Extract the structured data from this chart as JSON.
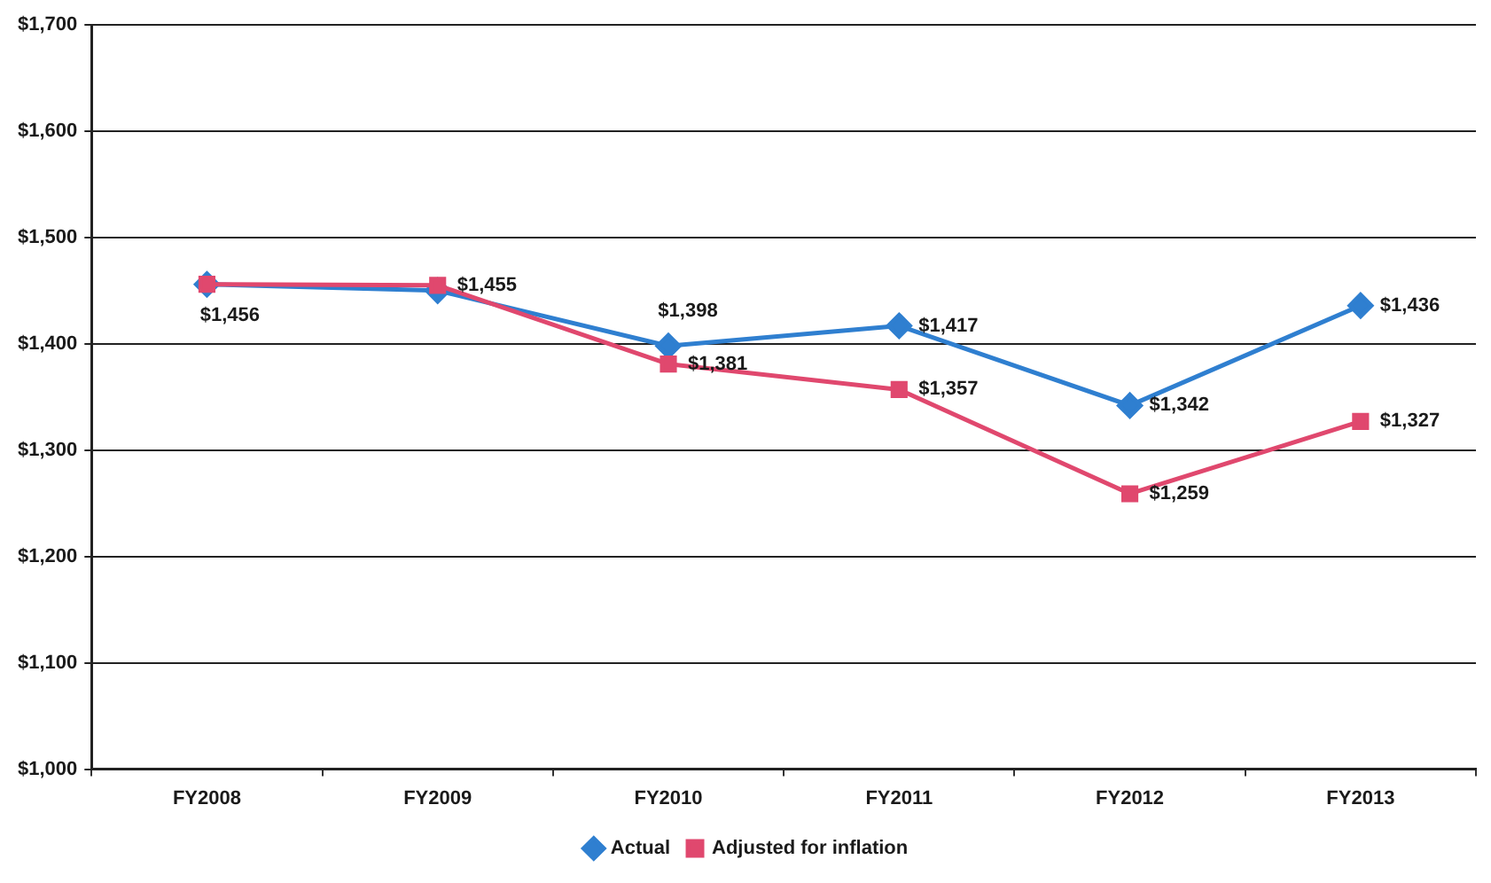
{
  "chart_data": {
    "type": "line",
    "categories": [
      "FY2008",
      "FY2009",
      "FY2010",
      "FY2011",
      "FY2012",
      "FY2013"
    ],
    "series": [
      {
        "name": "Actual",
        "color": "#2f7fd0",
        "marker": "diamond",
        "values": [
          1456,
          1450,
          1398,
          1417,
          1342,
          1436
        ],
        "value_labels": [
          "$1,456",
          null,
          "$1,398",
          "$1,417",
          "$1,342",
          "$1,436"
        ]
      },
      {
        "name": "Adjusted for inflation",
        "color": "#e0486e",
        "marker": "square",
        "values": [
          1456,
          1455,
          1381,
          1357,
          1259,
          1327
        ],
        "value_labels": [
          null,
          "$1,455",
          "$1,381",
          "$1,357",
          "$1,259",
          "$1,327"
        ]
      }
    ],
    "ylim": [
      1000,
      1700
    ],
    "yticks": [
      {
        "value": 1000,
        "label": "$1,000"
      },
      {
        "value": 1100,
        "label": "$1,100"
      },
      {
        "value": 1200,
        "label": "$1,200"
      },
      {
        "value": 1300,
        "label": "$1,300"
      },
      {
        "value": 1400,
        "label": "$1,400"
      },
      {
        "value": 1500,
        "label": "$1,500"
      },
      {
        "value": 1600,
        "label": "$1,600"
      },
      {
        "value": 1700,
        "label": "$1,700"
      }
    ],
    "grid": "y",
    "legend": "bottom"
  }
}
